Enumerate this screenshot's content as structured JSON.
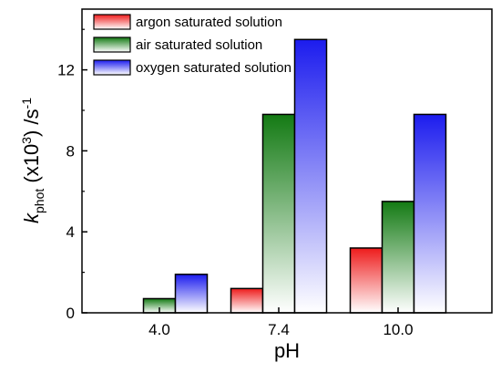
{
  "chart_data": {
    "type": "bar",
    "categories": [
      "4.0",
      "7.4",
      "10.0"
    ],
    "series": [
      {
        "name": "argon saturated solution",
        "values": [
          0,
          1.2,
          3.2
        ],
        "color": "#ee1c1c"
      },
      {
        "name": "air saturated solution",
        "values": [
          0.7,
          9.8,
          5.5
        ],
        "color": "#137a13"
      },
      {
        "name": "oxygen saturated solution",
        "values": [
          1.9,
          13.5,
          9.8
        ],
        "color": "#1c1cee"
      }
    ],
    "xlabel": "pH",
    "ylabel": {
      "k": "k",
      "sub": "phot",
      "mid": " (x10",
      "sup3": "3",
      "end": ") /s",
      "supneg1": "-1"
    },
    "ylim": [
      0,
      15
    ],
    "yticks": [
      "0",
      "4",
      "8",
      "12"
    ],
    "ytick_values": [
      0,
      4,
      8,
      12
    ],
    "legend_position": "top-left",
    "grid": false
  }
}
